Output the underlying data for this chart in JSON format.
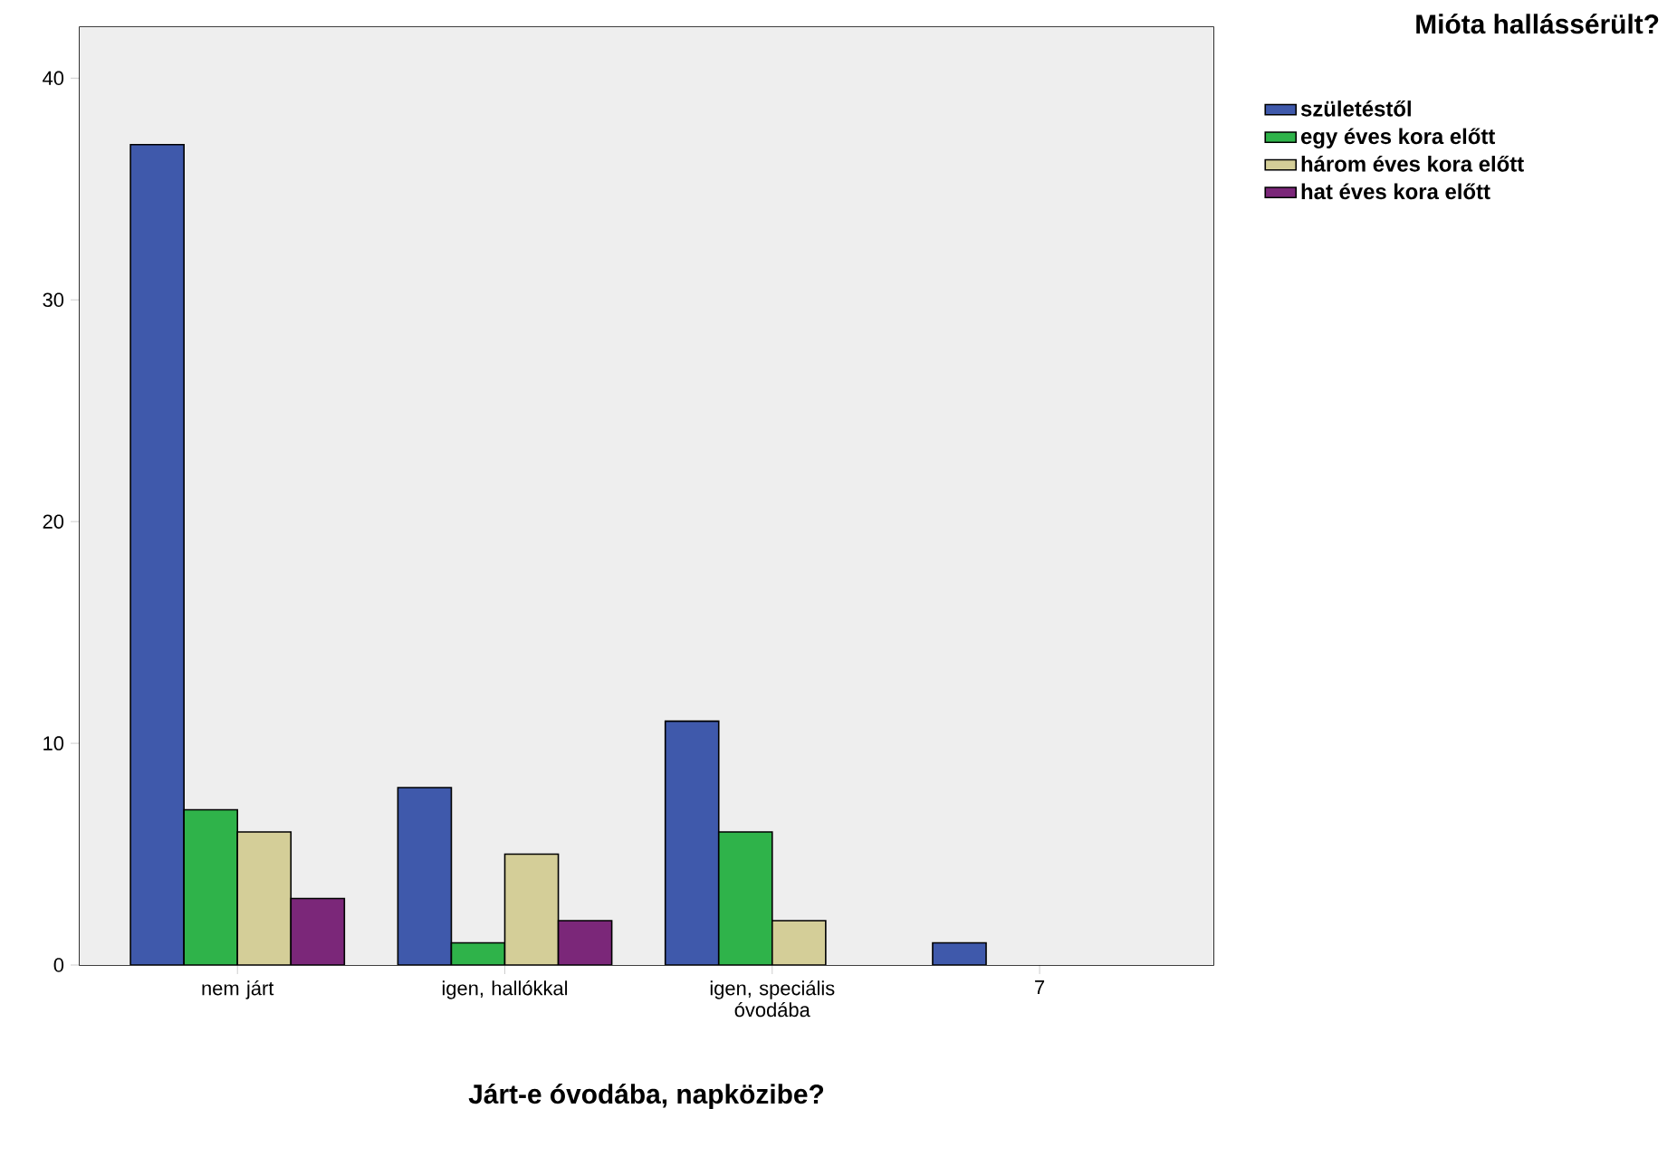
{
  "chart_data": {
    "type": "bar",
    "xlabel": "Járt-e óvodába, napközibe?",
    "legend_title": "Mióta hallássérült?",
    "categories": [
      "nem járt",
      "igen, hallókkal",
      "igen, speciális óvodába",
      "7"
    ],
    "series": [
      {
        "name": "születéstől",
        "color": "#3f59ab",
        "values": [
          37,
          8,
          11,
          1
        ]
      },
      {
        "name": "egy éves kora előtt",
        "color": "#2fb34a",
        "values": [
          7,
          1,
          6,
          null
        ]
      },
      {
        "name": "három éves kora előtt",
        "color": "#d4ce98",
        "values": [
          6,
          5,
          2,
          null
        ]
      },
      {
        "name": "hat éves kora előtt",
        "color": "#7b2779",
        "values": [
          3,
          2,
          null,
          null
        ]
      }
    ],
    "ylim": [
      0,
      42.3
    ],
    "yticks": [
      0,
      10,
      20,
      30,
      40
    ],
    "grid": false,
    "legend": "top right"
  }
}
